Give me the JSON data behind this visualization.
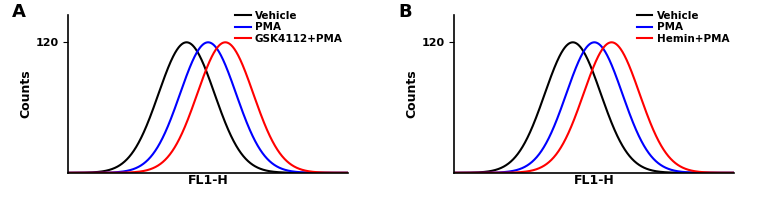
{
  "panel_A": {
    "label": "A",
    "xlabel": "FL1-H",
    "ylabel": "Counts",
    "ytick": 120,
    "curves": [
      {
        "label": "Vehicle",
        "color": "#000000",
        "mu": 0.0,
        "sigma": 0.13,
        "lw": 1.5
      },
      {
        "label": "PMA",
        "color": "#0000FF",
        "mu": 0.1,
        "sigma": 0.13,
        "lw": 1.5
      },
      {
        "label": "GSK4112+PMA",
        "color": "#FF0000",
        "mu": 0.18,
        "sigma": 0.13,
        "lw": 1.5
      }
    ]
  },
  "panel_B": {
    "label": "B",
    "xlabel": "FL1-H",
    "ylabel": "Counts",
    "ytick": 120,
    "curves": [
      {
        "label": "Vehicle",
        "color": "#000000",
        "mu": 0.0,
        "sigma": 0.13,
        "lw": 1.5
      },
      {
        "label": "PMA",
        "color": "#0000FF",
        "mu": 0.1,
        "sigma": 0.13,
        "lw": 1.5
      },
      {
        "label": "Hemin+PMA",
        "color": "#FF0000",
        "mu": 0.18,
        "sigma": 0.13,
        "lw": 1.5
      }
    ]
  },
  "fig_width": 7.57,
  "fig_height": 2.16,
  "dpi": 100,
  "xlim": [
    -0.55,
    0.75
  ],
  "ylim": [
    0,
    145
  ]
}
